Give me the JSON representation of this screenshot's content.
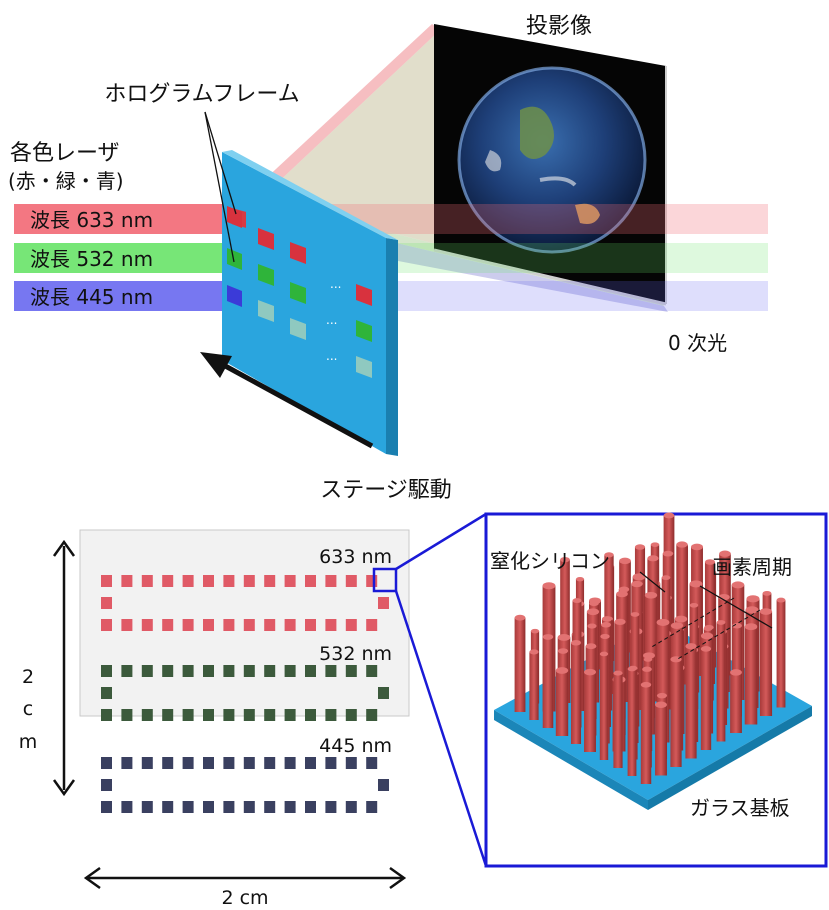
{
  "top": {
    "projection_label": "投影像",
    "hologram_label": "ホログラムフレーム",
    "laser_label_line1": "各色レーザ",
    "laser_label_line2": "(赤・緑・青)",
    "beams": [
      {
        "label": "波長 633 nm",
        "color": "#f26d78",
        "frame_color": "#e0424d"
      },
      {
        "label": "波長 532 nm",
        "color": "#6be36b",
        "frame_color": "#2fb43a"
      },
      {
        "label": "波長 445 nm",
        "color": "#6b6bf0",
        "frame_color": "#3b3bd8"
      }
    ],
    "zero_order_label": "0 次光",
    "stage_drive_label": "ステージ駆動",
    "ellipsis": "..."
  },
  "bottom": {
    "dim_label_vertical": [
      "2",
      "c",
      "m"
    ],
    "dim_label_horizontal": "2 cm",
    "rows": [
      {
        "label": "633 nm",
        "color": "#e05a66"
      },
      {
        "label": "532 nm",
        "color": "#3c5a3c"
      },
      {
        "label": "445 nm",
        "color": "#3a4060"
      }
    ],
    "inset": {
      "sin_label": "窒化シリコン",
      "pixel_period_label": "画素周期",
      "glass_label": "ガラス基板",
      "border_color": "#1a1ad6"
    }
  }
}
